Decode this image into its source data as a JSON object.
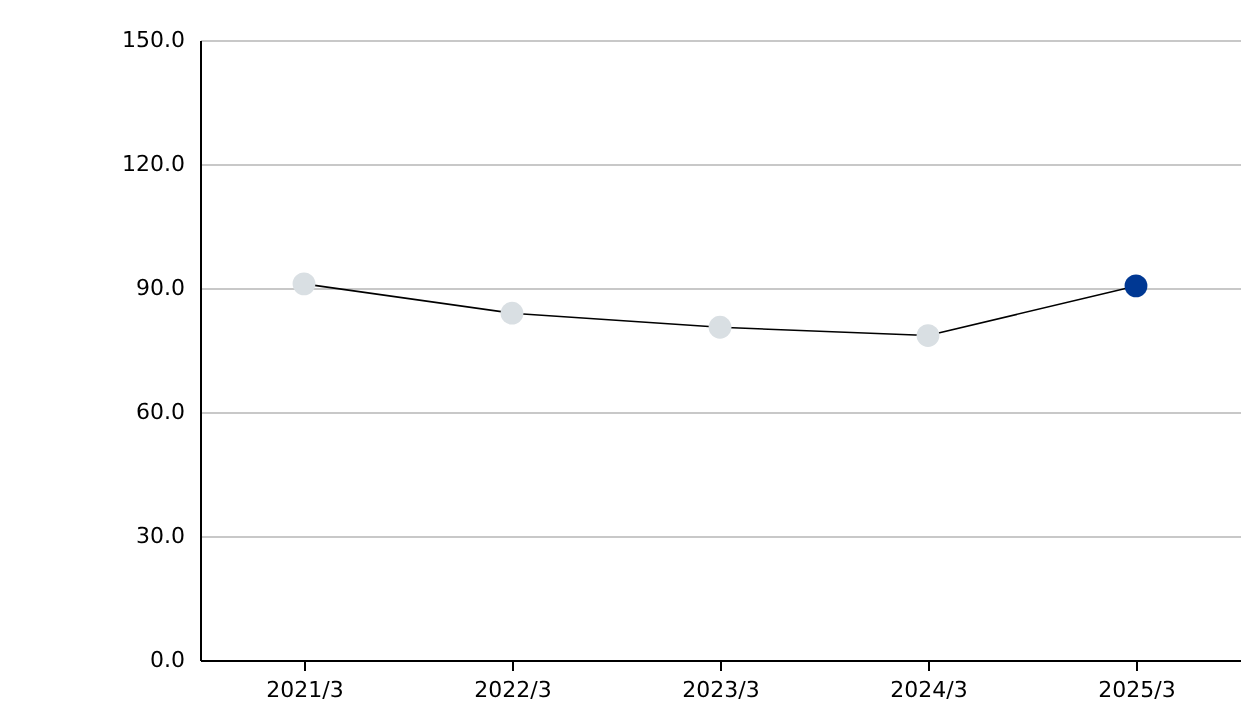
{
  "chart_data": {
    "type": "line",
    "categories": [
      "2021/3",
      "2022/3",
      "2023/3",
      "2024/3",
      "2025/3"
    ],
    "series": [
      {
        "color": "#000000",
        "colors": [
          "#d9dfe3",
          "#d9dfe3",
          "#d9dfe3",
          "#d9dfe3",
          "#003893"
        ],
        "values": [
          91.0,
          83.9,
          80.5,
          78.5,
          90.5
        ]
      }
    ],
    "ylim": [
      0,
      150
    ],
    "yticks": [
      {
        "value": 0,
        "label": "0.0"
      },
      {
        "value": 30,
        "label": "30.0"
      },
      {
        "value": 60,
        "label": "60.0"
      },
      {
        "value": 90,
        "label": "90.0"
      },
      {
        "value": 120,
        "label": "120.0"
      },
      {
        "value": 150,
        "label": "150.0"
      }
    ],
    "grid": "y",
    "marker": "circle",
    "line_style": "solid",
    "legend": false
  }
}
